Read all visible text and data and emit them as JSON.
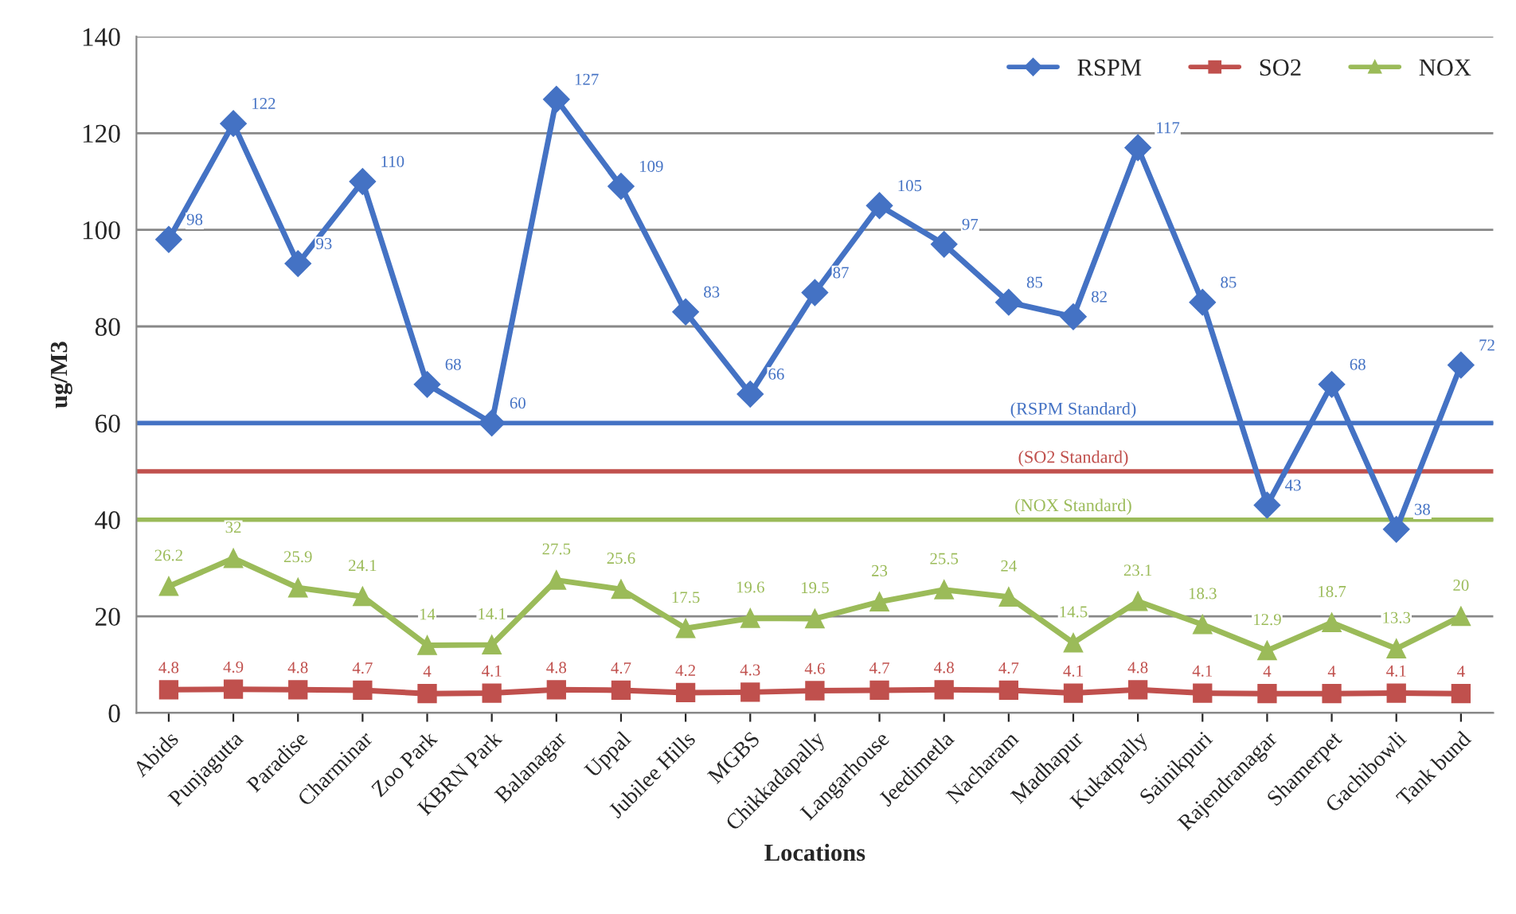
{
  "chart_data": {
    "type": "line",
    "xlabel": "Locations",
    "ylabel": "ug/M3",
    "categories": [
      "Abids",
      "Punjagutta",
      "Paradise",
      "Charminar",
      "Zoo Park",
      "KBRN Park",
      "Balanagar",
      "Uppal",
      "Jubilee Hills",
      "MGBS",
      "Chikkadapally",
      "Langarhouse",
      "Jeedimetla",
      "Nacharam",
      "Madhapur",
      "Kukatpally",
      "Sainikpuri",
      "Rajendranagar",
      "Shamerpet",
      "Gachibowli",
      "Tank bund"
    ],
    "series": [
      {
        "name": "RSPM",
        "color": "#4472c4",
        "marker": "diamond",
        "values": [
          98,
          122,
          93,
          110,
          68,
          60,
          127,
          109,
          83,
          66,
          87,
          105,
          97,
          85,
          82,
          117,
          85,
          43,
          68,
          38,
          72
        ]
      },
      {
        "name": "SO2",
        "color": "#c0504d",
        "marker": "square",
        "values": [
          4.8,
          4.9,
          4.8,
          4.7,
          4,
          4.1,
          4.8,
          4.7,
          4.2,
          4.3,
          4.6,
          4.7,
          4.8,
          4.7,
          4.1,
          4.8,
          4.1,
          4,
          4,
          4.1,
          4
        ]
      },
      {
        "name": "NOX",
        "color": "#9bbb59",
        "marker": "triangle",
        "values": [
          26.2,
          32,
          25.9,
          24.1,
          14,
          14.1,
          27.5,
          25.6,
          17.5,
          19.6,
          19.5,
          23,
          25.5,
          24,
          14.5,
          23.1,
          18.3,
          12.9,
          18.7,
          13.3,
          20
        ]
      }
    ],
    "ref_lines": [
      {
        "axis": "y",
        "value": 60,
        "label": "(RSPM Standard)",
        "color": "#4472c4"
      },
      {
        "axis": "y",
        "value": 50,
        "label": "(SO2 Standard)",
        "color": "#c0504d"
      },
      {
        "axis": "y",
        "value": 40,
        "label": "(NOX Standard)",
        "color": "#9bbb59"
      }
    ],
    "ylim": [
      0,
      140
    ],
    "yticks": [
      0,
      20,
      40,
      60,
      80,
      100,
      120,
      140
    ],
    "grid": "y",
    "legend": "top right",
    "data_labels": true,
    "line_style": "solid"
  }
}
